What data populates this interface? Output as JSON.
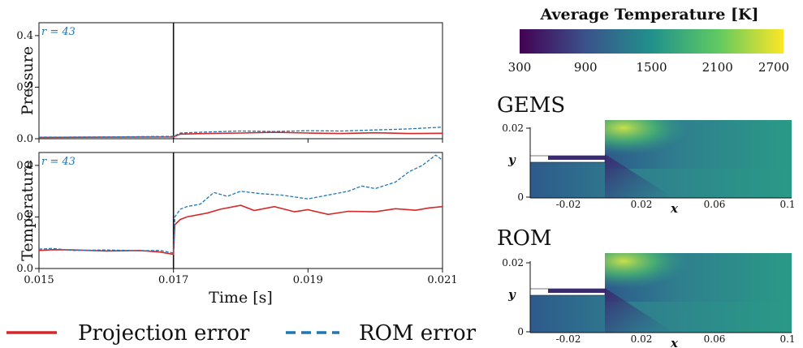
{
  "chart_data": [
    {
      "type": "line",
      "ylabel": "Pressure",
      "annotation": "r = 43",
      "xlim": [
        0.015,
        0.021
      ],
      "ylim": [
        0.0,
        0.45
      ],
      "yticks": [
        "0.0",
        "0.2",
        "0.4"
      ],
      "xticks": [],
      "vline_x": 0.017,
      "series": [
        {
          "name": "Projection error",
          "color": "#d62728",
          "dash": false,
          "x": [
            0.015,
            0.016,
            0.017,
            0.0171,
            0.0175,
            0.018,
            0.0185,
            0.019,
            0.0195,
            0.02,
            0.0205,
            0.021
          ],
          "y": [
            0.005,
            0.006,
            0.007,
            0.018,
            0.02,
            0.022,
            0.025,
            0.022,
            0.02,
            0.023,
            0.02,
            0.021
          ]
        },
        {
          "name": "ROM error",
          "color": "#1f77b4",
          "dash": true,
          "x": [
            0.015,
            0.016,
            0.017,
            0.0171,
            0.0175,
            0.018,
            0.0185,
            0.019,
            0.0195,
            0.02,
            0.0205,
            0.021
          ],
          "y": [
            0.006,
            0.007,
            0.009,
            0.022,
            0.026,
            0.03,
            0.028,
            0.031,
            0.03,
            0.034,
            0.038,
            0.045
          ]
        }
      ]
    },
    {
      "type": "line",
      "ylabel": "Temperature",
      "xlabel": "Time [s]",
      "annotation": "r = 43",
      "xlim": [
        0.015,
        0.021
      ],
      "ylim": [
        0.0,
        0.45
      ],
      "yticks": [
        "0.0",
        "0.2",
        "0.4"
      ],
      "xticks": [
        "0.015",
        "0.017",
        "0.019",
        "0.021"
      ],
      "vline_x": 0.017,
      "series": [
        {
          "name": "Projection error",
          "color": "#d62728",
          "dash": false,
          "x": [
            0.015,
            0.0152,
            0.0155,
            0.016,
            0.0165,
            0.0168,
            0.017,
            0.01702,
            0.0171,
            0.0172,
            0.0175,
            0.0177,
            0.018,
            0.0182,
            0.0185,
            0.0188,
            0.019,
            0.0193,
            0.0196,
            0.02,
            0.0203,
            0.0206,
            0.0208,
            0.021
          ],
          "y": [
            0.07,
            0.073,
            0.072,
            0.068,
            0.07,
            0.064,
            0.055,
            0.17,
            0.19,
            0.2,
            0.215,
            0.23,
            0.245,
            0.225,
            0.24,
            0.22,
            0.228,
            0.21,
            0.222,
            0.22,
            0.232,
            0.226,
            0.235,
            0.24
          ]
        },
        {
          "name": "ROM error",
          "color": "#1f77b4",
          "dash": true,
          "x": [
            0.015,
            0.0152,
            0.0155,
            0.016,
            0.0165,
            0.0168,
            0.017,
            0.01702,
            0.0171,
            0.0172,
            0.0174,
            0.0176,
            0.0178,
            0.018,
            0.0183,
            0.0186,
            0.019,
            0.0193,
            0.0196,
            0.0198,
            0.02,
            0.0203,
            0.0205,
            0.0207,
            0.0209,
            0.021
          ],
          "y": [
            0.075,
            0.078,
            0.07,
            0.072,
            0.069,
            0.07,
            0.06,
            0.2,
            0.23,
            0.24,
            0.25,
            0.295,
            0.28,
            0.3,
            0.29,
            0.285,
            0.27,
            0.285,
            0.3,
            0.32,
            0.31,
            0.335,
            0.375,
            0.4,
            0.44,
            0.42
          ]
        }
      ]
    }
  ],
  "legend": [
    {
      "label": "Projection error",
      "color": "#d62728",
      "dash": false
    },
    {
      "label": "ROM error",
      "color": "#1f77b4",
      "dash": true
    }
  ],
  "colorbar": {
    "title": "Average Temperature [K]",
    "ticks": [
      "300",
      "900",
      "1500",
      "2100",
      "2700"
    ],
    "colors": [
      "#440154",
      "#3b528b",
      "#21918c",
      "#5ec962",
      "#fde725"
    ]
  },
  "fields": [
    {
      "title": "GEMS",
      "xticks": [
        "-0.02",
        "0.02",
        "0.06",
        "0.1"
      ],
      "yticks": [
        "0.02",
        "0"
      ],
      "xlabel": "x",
      "ylabel": "y"
    },
    {
      "title": "ROM",
      "xticks": [
        "-0.02",
        "0.02",
        "0.06",
        "0.1"
      ],
      "yticks": [
        "0.02",
        "0"
      ],
      "xlabel": "x",
      "ylabel": "y"
    }
  ]
}
